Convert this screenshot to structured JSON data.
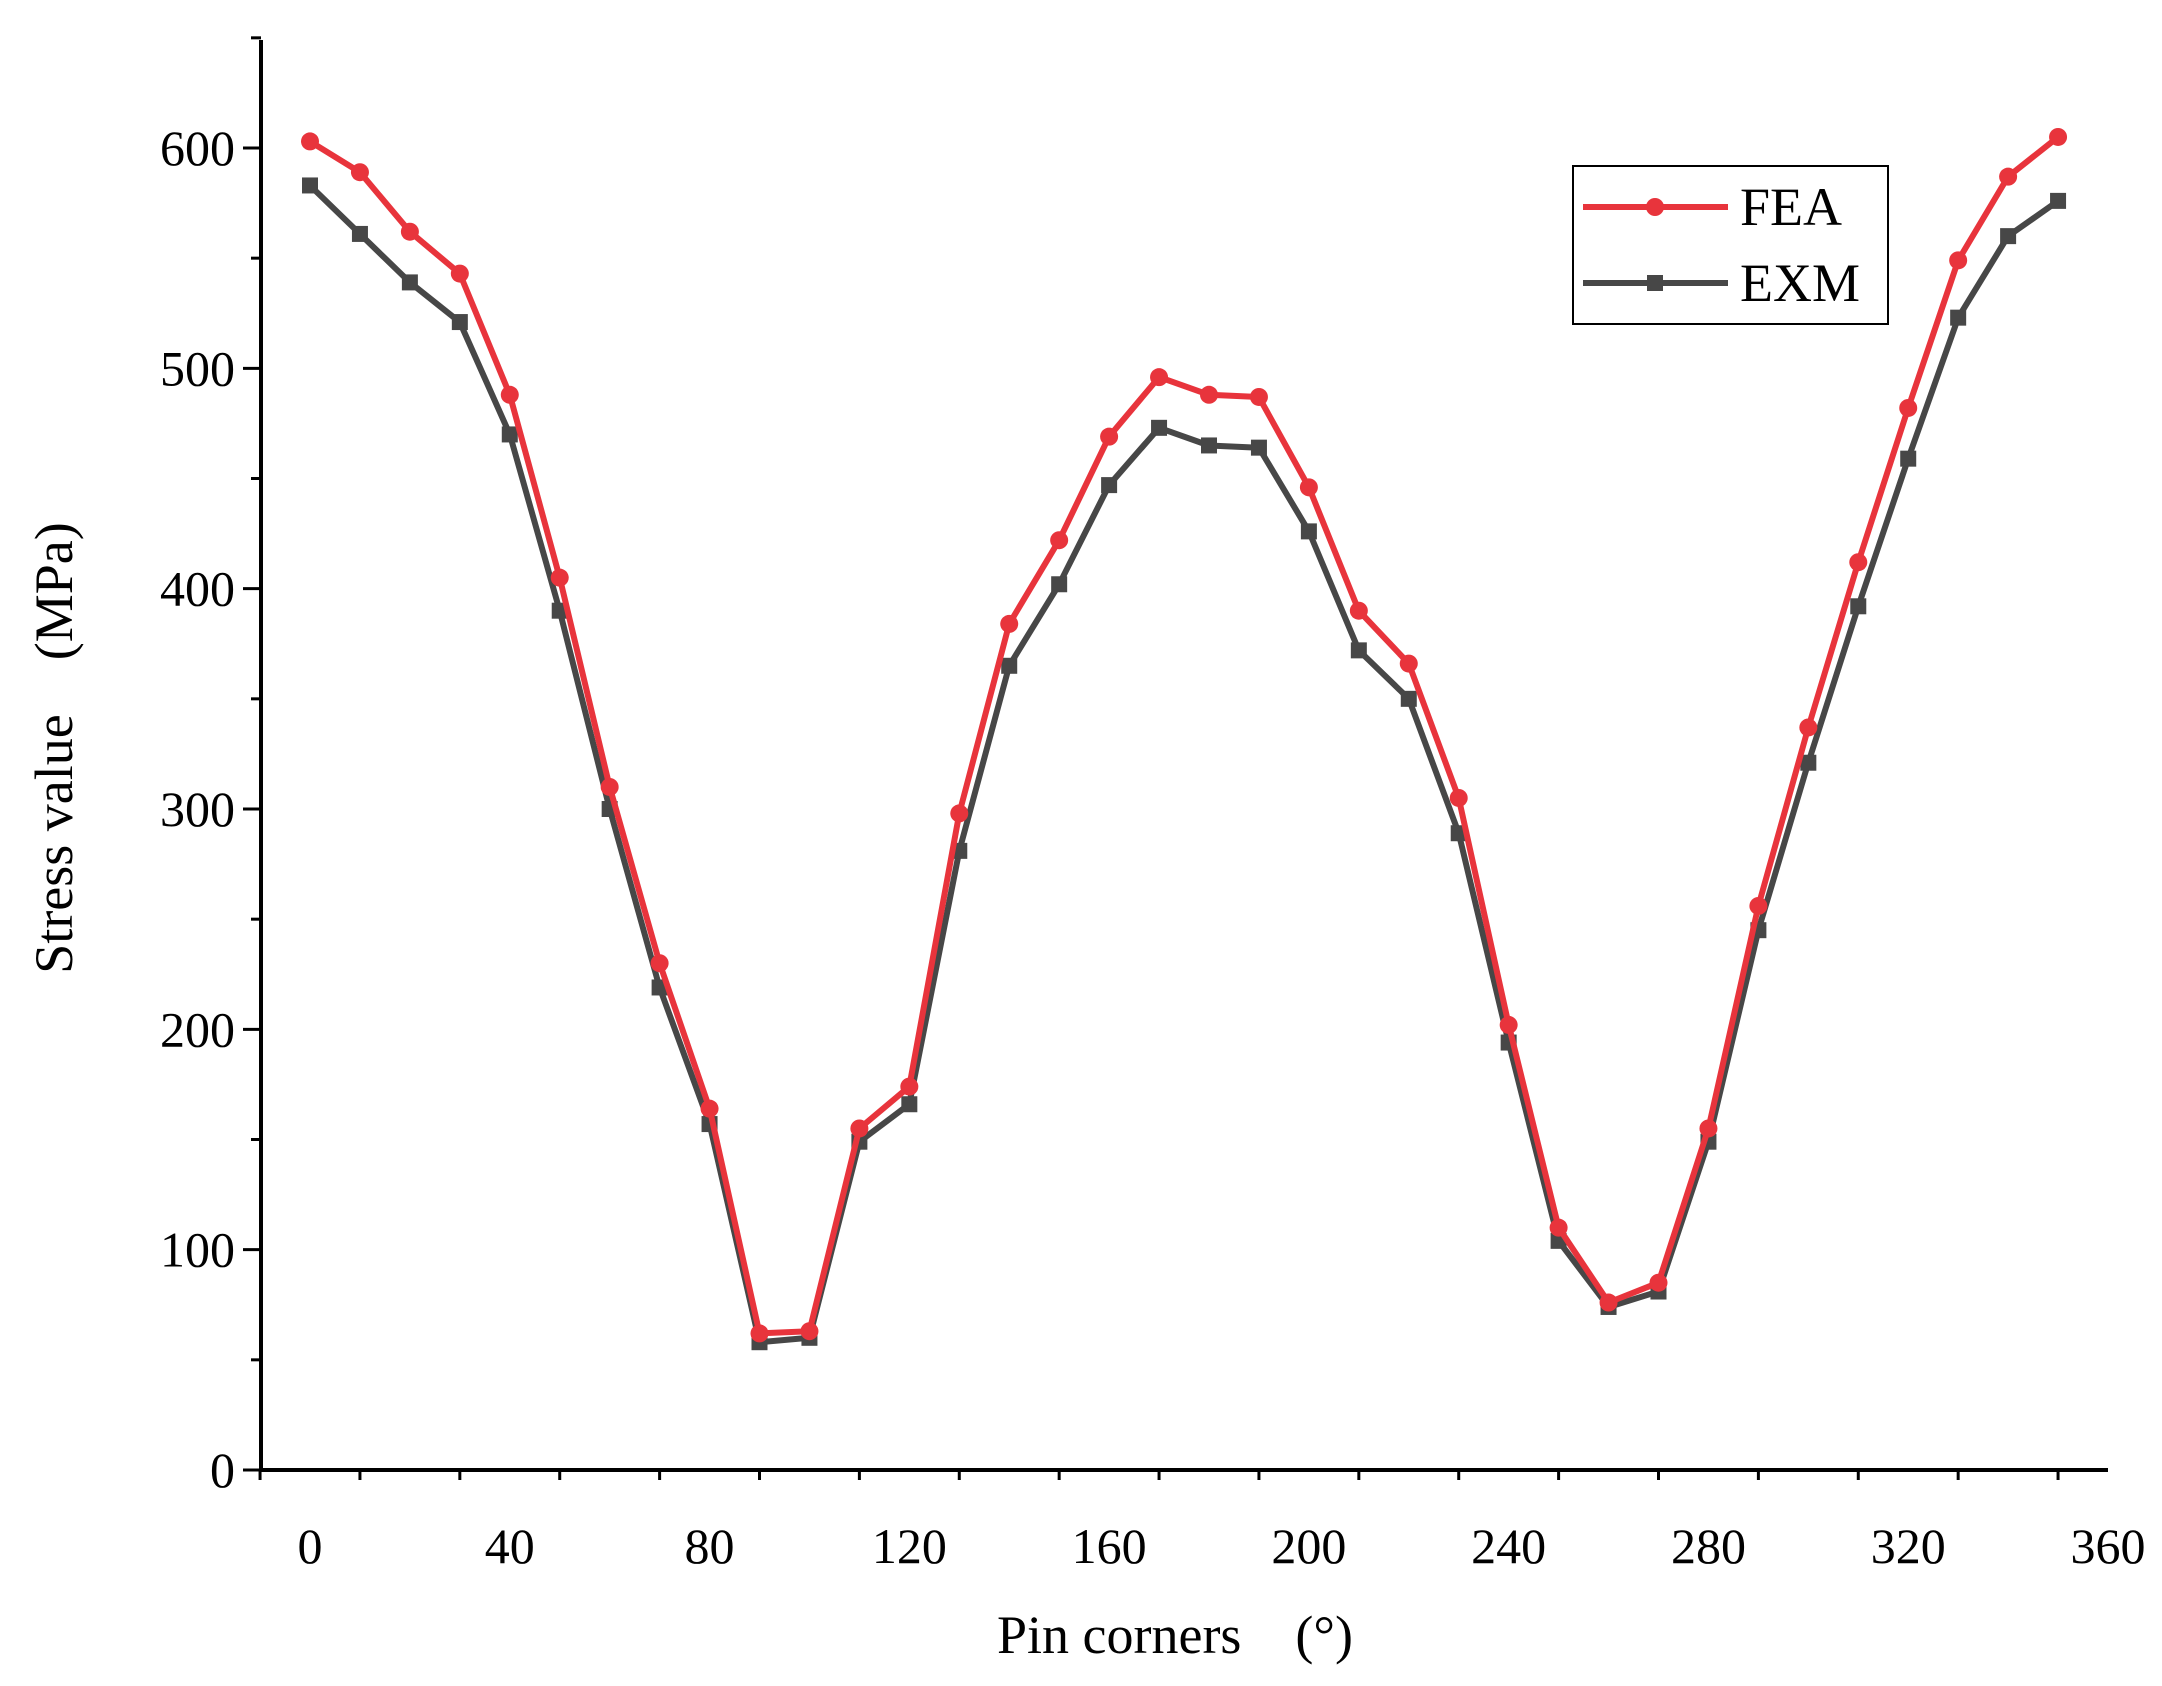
{
  "chart_data": {
    "type": "line",
    "title": "",
    "xlabel": "Pin corners　(°)",
    "ylabel": "Stress value　(MPa)",
    "xlim": [
      -10,
      360
    ],
    "ylim": [
      0,
      650
    ],
    "xticks": [
      0,
      40,
      80,
      120,
      160,
      200,
      240,
      280,
      320,
      360
    ],
    "yticks": [
      0,
      100,
      200,
      300,
      400,
      500,
      600
    ],
    "xtick_labels": [
      "0",
      "40",
      "80",
      "120",
      "160",
      "200",
      "240",
      "280",
      "320",
      "360"
    ],
    "ytick_labels": [
      "0",
      "100",
      "200",
      "300",
      "400",
      "500",
      "600"
    ],
    "x": [
      0,
      10,
      20,
      30,
      40,
      50,
      60,
      70,
      80,
      90,
      100,
      110,
      120,
      130,
      140,
      150,
      160,
      170,
      180,
      190,
      200,
      210,
      220,
      230,
      240,
      250,
      260,
      270,
      280,
      290,
      300,
      310,
      320,
      330,
      340,
      350
    ],
    "grid": false,
    "legend_position": "top-right",
    "series": [
      {
        "name": "FEA",
        "color": "#e8343c",
        "marker": "circle",
        "values": [
          603,
          589,
          562,
          543,
          488,
          405,
          310,
          230,
          164,
          62,
          63,
          155,
          174,
          298,
          384,
          422,
          469,
          496,
          488,
          487,
          446,
          390,
          366,
          305,
          202,
          110,
          76,
          85,
          155,
          256,
          337,
          412,
          482,
          549,
          587,
          605
        ]
      },
      {
        "name": "EXM",
        "color": "#474747",
        "marker": "square",
        "values": [
          583,
          561,
          539,
          521,
          470,
          390,
          300,
          219,
          157,
          58,
          60,
          149,
          166,
          281,
          365,
          402,
          447,
          473,
          465,
          464,
          426,
          372,
          350,
          289,
          194,
          104,
          74,
          81,
          149,
          245,
          321,
          392,
          459,
          523,
          560,
          576
        ]
      }
    ]
  }
}
